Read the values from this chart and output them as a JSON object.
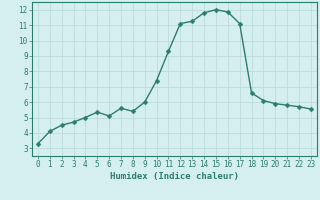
{
  "x": [
    0,
    1,
    2,
    3,
    4,
    5,
    6,
    7,
    8,
    9,
    10,
    11,
    12,
    13,
    14,
    15,
    16,
    17,
    18,
    19,
    20,
    21,
    22,
    23
  ],
  "y": [
    3.3,
    4.1,
    4.5,
    4.7,
    5.0,
    5.35,
    5.1,
    5.6,
    5.4,
    6.0,
    7.4,
    9.3,
    11.1,
    11.25,
    11.8,
    12.0,
    11.85,
    11.1,
    6.6,
    6.1,
    5.9,
    5.8,
    5.7,
    5.55
  ],
  "xlabel": "Humidex (Indice chaleur)",
  "xlim": [
    -0.5,
    23.5
  ],
  "ylim": [
    2.5,
    12.5
  ],
  "yticks": [
    3,
    4,
    5,
    6,
    7,
    8,
    9,
    10,
    11,
    12
  ],
  "xticks": [
    0,
    1,
    2,
    3,
    4,
    5,
    6,
    7,
    8,
    9,
    10,
    11,
    12,
    13,
    14,
    15,
    16,
    17,
    18,
    19,
    20,
    21,
    22,
    23
  ],
  "line_color": "#2d7d6f",
  "marker_color": "#2d7d6f",
  "bg_color": "#d5efef",
  "grid_color": "#b8d8d8",
  "axis_color": "#2d7d6f",
  "tick_color": "#2d7d6f",
  "xlabel_color": "#2d7d6f",
  "line_width": 1.0,
  "marker_size": 2.5,
  "tick_fontsize": 5.5,
  "xlabel_fontsize": 6.5
}
